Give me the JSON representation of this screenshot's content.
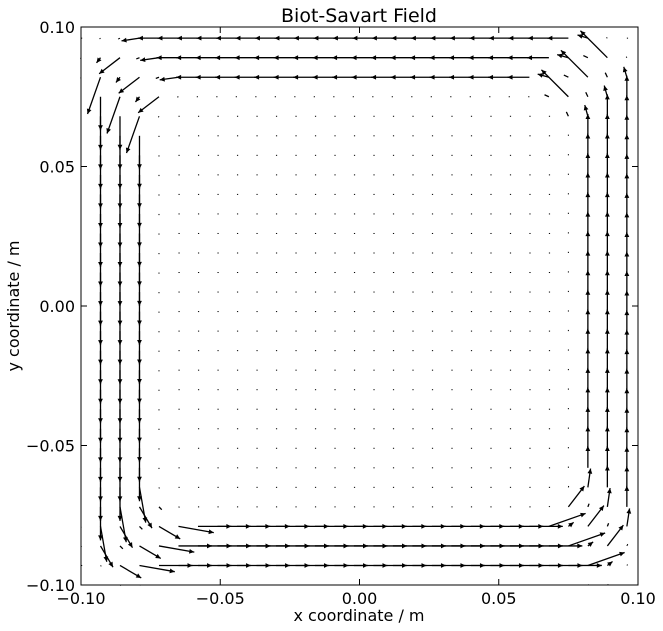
{
  "chart_data": {
    "type": "quiver",
    "title": "Biot-Savart Field",
    "xlabel": "x coordinate / m",
    "ylabel": "y coordinate / m",
    "xlim": [
      -0.1,
      0.1
    ],
    "ylim": [
      -0.1,
      0.1
    ],
    "xticks": [
      -0.1,
      -0.05,
      0.0,
      0.05,
      0.1
    ],
    "xtick_labels": [
      "−0.10",
      "−0.05",
      "0.00",
      "0.05",
      "0.10"
    ],
    "yticks": [
      -0.1,
      -0.05,
      0.0,
      0.05,
      0.1
    ],
    "ytick_labels": [
      "−0.10",
      "−0.05",
      "0.00",
      "0.05",
      "0.10"
    ],
    "grid": false,
    "legend": false,
    "field": {
      "grid_x": {
        "start": -0.1,
        "step": 0.007,
        "count": 29
      },
      "grid_y": {
        "start": -0.1,
        "step": 0.007,
        "count": 29
      },
      "loop_half_widths": [
        0.094,
        0.087,
        0.08
      ],
      "loop_corner_radius": 0.018,
      "circulation": "counterclockwise",
      "arrow_length_max": 0.014,
      "color": "#000000"
    }
  }
}
